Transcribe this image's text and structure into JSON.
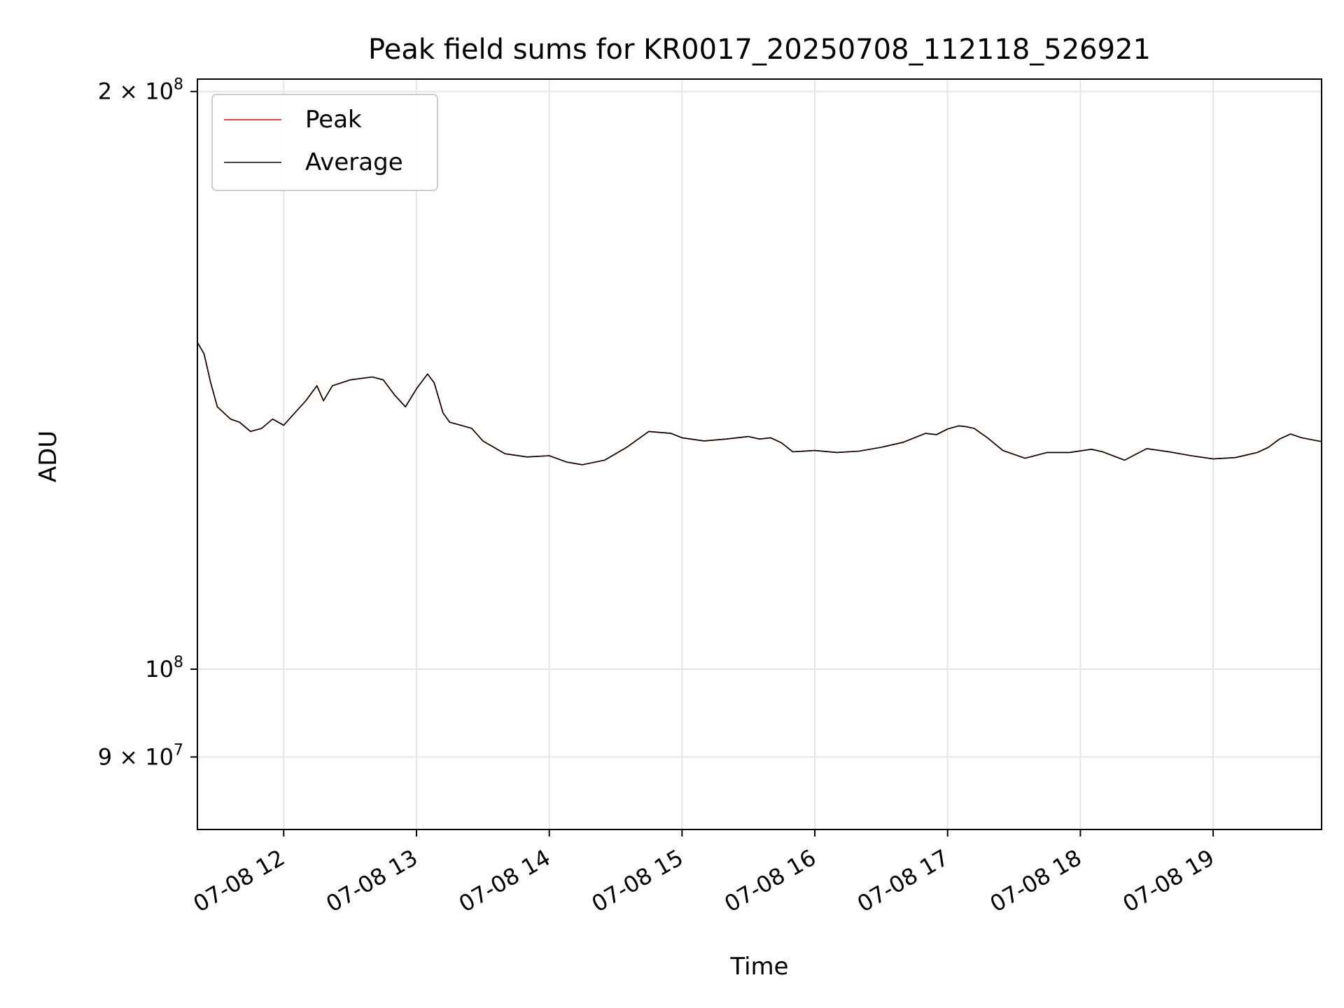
{
  "chart_data": {
    "type": "line",
    "title": "Peak field sums for KR0017_20250708_112118_526921",
    "xlabel": "Time",
    "ylabel": "ADU",
    "yscale": "log",
    "ylim": [
      82500000,
      203000000
    ],
    "xlim": [
      "07-08 11:21",
      "07-08 19:49"
    ],
    "grid": true,
    "legend_position": "top-left",
    "x_ticks": [
      "07-08 12",
      "07-08 13",
      "07-08 14",
      "07-08 15",
      "07-08 16",
      "07-08 17",
      "07-08 18",
      "07-08 19"
    ],
    "y_ticks": [
      {
        "value": 200000000,
        "mantissa": "2",
        "exponent": "8"
      },
      {
        "value": 100000000,
        "mantissa": "",
        "exponent": "8"
      },
      {
        "value": 90000000,
        "mantissa": "9",
        "exponent": "7"
      }
    ],
    "series": [
      {
        "name": "Average",
        "color": "#000000",
        "points": [
          [
            "07-08 11:21",
            148000000
          ],
          [
            "07-08 11:24",
            146000000
          ],
          [
            "07-08 11:27",
            141000000
          ],
          [
            "07-08 11:30",
            137000000
          ],
          [
            "07-08 11:33",
            136000000
          ],
          [
            "07-08 11:36",
            135000000
          ],
          [
            "07-08 11:40",
            134500000
          ],
          [
            "07-08 11:45",
            133000000
          ],
          [
            "07-08 11:50",
            133500000
          ],
          [
            "07-08 11:55",
            135000000
          ],
          [
            "07-08 12:00",
            134000000
          ],
          [
            "07-08 12:05",
            136000000
          ],
          [
            "07-08 12:10",
            138000000
          ],
          [
            "07-08 12:15",
            140500000
          ],
          [
            "07-08 12:18",
            138000000
          ],
          [
            "07-08 12:22",
            140500000
          ],
          [
            "07-08 12:30",
            141500000
          ],
          [
            "07-08 12:40",
            142000000
          ],
          [
            "07-08 12:45",
            141500000
          ],
          [
            "07-08 12:50",
            139000000
          ],
          [
            "07-08 12:55",
            137000000
          ],
          [
            "07-08 13:00",
            140000000
          ],
          [
            "07-08 13:05",
            142500000
          ],
          [
            "07-08 13:08",
            141000000
          ],
          [
            "07-08 13:12",
            136000000
          ],
          [
            "07-08 13:15",
            134500000
          ],
          [
            "07-08 13:20",
            134000000
          ],
          [
            "07-08 13:25",
            133500000
          ],
          [
            "07-08 13:30",
            131500000
          ],
          [
            "07-08 13:40",
            129500000
          ],
          [
            "07-08 13:50",
            129000000
          ],
          [
            "07-08 14:00",
            129200000
          ],
          [
            "07-08 14:08",
            128200000
          ],
          [
            "07-08 14:15",
            127800000
          ],
          [
            "07-08 14:25",
            128500000
          ],
          [
            "07-08 14:35",
            130500000
          ],
          [
            "07-08 14:45",
            133000000
          ],
          [
            "07-08 14:55",
            132700000
          ],
          [
            "07-08 15:00",
            132000000
          ],
          [
            "07-08 15:10",
            131500000
          ],
          [
            "07-08 15:20",
            131800000
          ],
          [
            "07-08 15:30",
            132200000
          ],
          [
            "07-08 15:35",
            131800000
          ],
          [
            "07-08 15:40",
            132000000
          ],
          [
            "07-08 15:45",
            131200000
          ],
          [
            "07-08 15:50",
            129800000
          ],
          [
            "07-08 16:00",
            130000000
          ],
          [
            "07-08 16:10",
            129700000
          ],
          [
            "07-08 16:20",
            129900000
          ],
          [
            "07-08 16:30",
            130500000
          ],
          [
            "07-08 16:40",
            131300000
          ],
          [
            "07-08 16:50",
            132700000
          ],
          [
            "07-08 16:55",
            132500000
          ],
          [
            "07-08 17:00",
            133400000
          ],
          [
            "07-08 17:05",
            133900000
          ],
          [
            "07-08 17:08",
            133800000
          ],
          [
            "07-08 17:12",
            133500000
          ],
          [
            "07-08 17:18",
            132000000
          ],
          [
            "07-08 17:25",
            130000000
          ],
          [
            "07-08 17:35",
            128800000
          ],
          [
            "07-08 17:45",
            129700000
          ],
          [
            "07-08 17:55",
            129700000
          ],
          [
            "07-08 18:05",
            130200000
          ],
          [
            "07-08 18:10",
            129800000
          ],
          [
            "07-08 18:20",
            128500000
          ],
          [
            "07-08 18:25",
            129400000
          ],
          [
            "07-08 18:30",
            130300000
          ],
          [
            "07-08 18:40",
            129800000
          ],
          [
            "07-08 18:50",
            129200000
          ],
          [
            "07-08 19:00",
            128700000
          ],
          [
            "07-08 19:10",
            128900000
          ],
          [
            "07-08 19:20",
            129700000
          ],
          [
            "07-08 19:25",
            130500000
          ],
          [
            "07-08 19:30",
            131800000
          ],
          [
            "07-08 19:35",
            132600000
          ],
          [
            "07-08 19:40",
            132000000
          ],
          [
            "07-08 19:49",
            131400000
          ]
        ]
      },
      {
        "name": "Peak",
        "color": "#ff0000",
        "points": [
          [
            "07-08 11:21",
            148000000
          ],
          [
            "07-08 11:24",
            146000000
          ],
          [
            "07-08 11:27",
            141000000
          ],
          [
            "07-08 11:30",
            137000000
          ],
          [
            "07-08 11:33",
            136000000
          ],
          [
            "07-08 11:36",
            135000000
          ],
          [
            "07-08 11:40",
            134500000
          ],
          [
            "07-08 11:45",
            133000000
          ],
          [
            "07-08 11:50",
            133500000
          ],
          [
            "07-08 11:55",
            135000000
          ],
          [
            "07-08 12:00",
            134000000
          ],
          [
            "07-08 12:05",
            136000000
          ],
          [
            "07-08 12:10",
            138000000
          ],
          [
            "07-08 12:15",
            140500000
          ],
          [
            "07-08 12:18",
            138000000
          ],
          [
            "07-08 12:22",
            140500000
          ],
          [
            "07-08 12:30",
            141500000
          ],
          [
            "07-08 12:40",
            142000000
          ],
          [
            "07-08 12:45",
            141500000
          ],
          [
            "07-08 12:50",
            139000000
          ],
          [
            "07-08 12:55",
            137000000
          ],
          [
            "07-08 13:00",
            140000000
          ],
          [
            "07-08 13:05",
            142500000
          ],
          [
            "07-08 13:08",
            141000000
          ],
          [
            "07-08 13:12",
            136000000
          ],
          [
            "07-08 13:15",
            134500000
          ],
          [
            "07-08 13:20",
            134000000
          ],
          [
            "07-08 13:25",
            133500000
          ],
          [
            "07-08 13:30",
            131500000
          ],
          [
            "07-08 13:40",
            129500000
          ],
          [
            "07-08 13:50",
            129000000
          ],
          [
            "07-08 14:00",
            129200000
          ],
          [
            "07-08 14:08",
            128200000
          ],
          [
            "07-08 14:15",
            127800000
          ],
          [
            "07-08 14:25",
            128500000
          ],
          [
            "07-08 14:35",
            130500000
          ],
          [
            "07-08 14:45",
            133000000
          ],
          [
            "07-08 14:55",
            132700000
          ],
          [
            "07-08 15:00",
            132000000
          ],
          [
            "07-08 15:10",
            131500000
          ],
          [
            "07-08 15:20",
            131800000
          ],
          [
            "07-08 15:30",
            132200000
          ],
          [
            "07-08 15:35",
            131800000
          ],
          [
            "07-08 15:40",
            132000000
          ],
          [
            "07-08 15:45",
            131200000
          ],
          [
            "07-08 15:50",
            129800000
          ],
          [
            "07-08 16:00",
            130000000
          ],
          [
            "07-08 16:10",
            129700000
          ],
          [
            "07-08 16:20",
            129900000
          ],
          [
            "07-08 16:30",
            130500000
          ],
          [
            "07-08 16:40",
            131300000
          ],
          [
            "07-08 16:50",
            132700000
          ],
          [
            "07-08 16:55",
            132500000
          ],
          [
            "07-08 17:00",
            133400000
          ],
          [
            "07-08 17:05",
            133900000
          ],
          [
            "07-08 17:08",
            133800000
          ],
          [
            "07-08 17:12",
            133500000
          ],
          [
            "07-08 17:18",
            132000000
          ],
          [
            "07-08 17:25",
            130000000
          ],
          [
            "07-08 17:35",
            128800000
          ],
          [
            "07-08 17:45",
            129700000
          ],
          [
            "07-08 17:55",
            129700000
          ],
          [
            "07-08 18:05",
            130200000
          ],
          [
            "07-08 18:10",
            129800000
          ],
          [
            "07-08 18:20",
            128500000
          ],
          [
            "07-08 18:25",
            129400000
          ],
          [
            "07-08 18:30",
            130300000
          ],
          [
            "07-08 18:40",
            129800000
          ],
          [
            "07-08 18:50",
            129200000
          ],
          [
            "07-08 19:00",
            128700000
          ],
          [
            "07-08 19:10",
            128900000
          ],
          [
            "07-08 19:20",
            129700000
          ],
          [
            "07-08 19:25",
            130500000
          ],
          [
            "07-08 19:30",
            131800000
          ],
          [
            "07-08 19:35",
            132600000
          ],
          [
            "07-08 19:40",
            132000000
          ],
          [
            "07-08 19:49",
            131400000
          ]
        ]
      }
    ]
  }
}
